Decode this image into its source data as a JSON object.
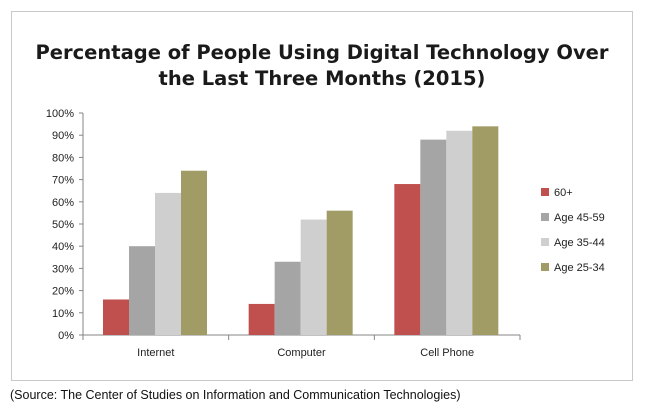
{
  "chart_data": {
    "type": "bar",
    "title": "Percentage of People Using Digital Technology Over the Last Three Months (2015)",
    "title_lines": [
      "Percentage of People Using Digital Technology Over",
      "the Last Three Months (2015)"
    ],
    "categories": [
      "Internet",
      "Computer",
      "Cell Phone"
    ],
    "series": [
      {
        "name": "60+",
        "color": "#c0504d",
        "values": [
          16,
          14,
          68
        ]
      },
      {
        "name": "Age 45-59",
        "color": "#a5a5a5",
        "values": [
          40,
          33,
          88
        ]
      },
      {
        "name": "Age 35-44",
        "color": "#cfcfcf",
        "values": [
          64,
          52,
          92
        ]
      },
      {
        "name": "Age 25-34",
        "color": "#a19c65",
        "values": [
          74,
          56,
          94
        ]
      }
    ],
    "ylim": [
      0,
      100
    ],
    "yticks": [
      "0%",
      "10%",
      "20%",
      "30%",
      "40%",
      "50%",
      "60%",
      "70%",
      "80%",
      "90%",
      "100%"
    ],
    "grid": false,
    "legend": "right"
  },
  "source_note": "(Source: The Center of Studies on Information and Communication Technologies)"
}
